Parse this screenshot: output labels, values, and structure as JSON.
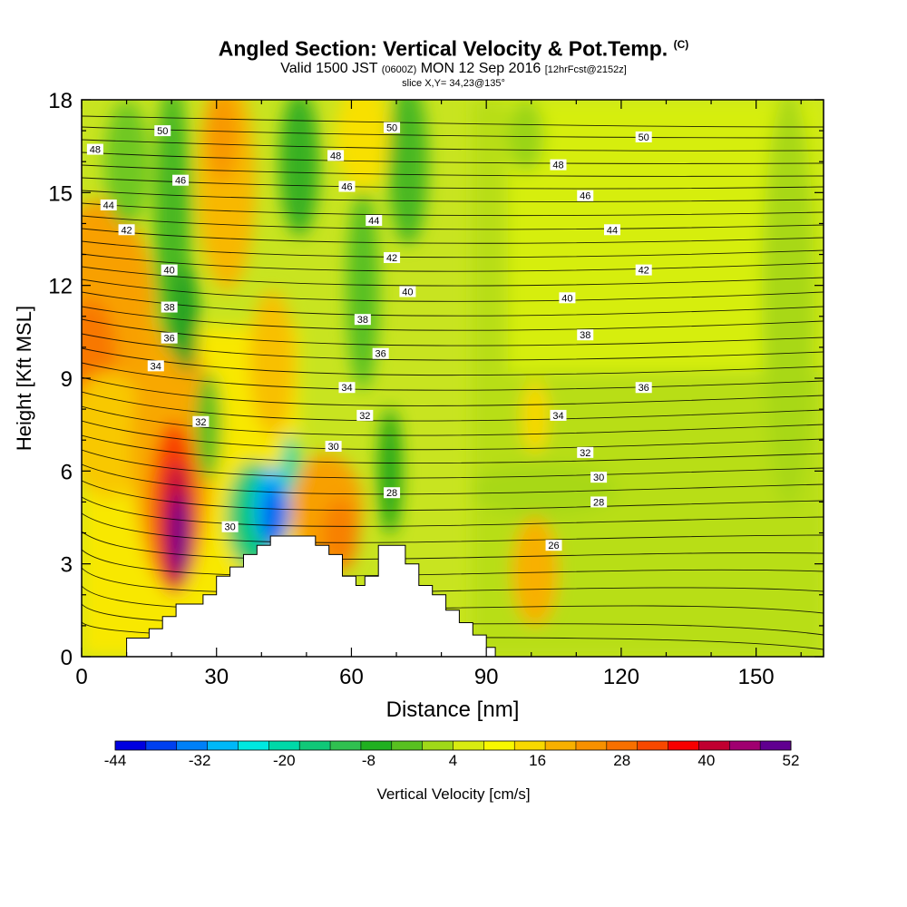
{
  "title": {
    "main": "Angled Section: Vertical Velocity & Pot.Temp.",
    "main_suffix": "(C)",
    "valid_prefix": "Valid 1500 JST",
    "valid_utc": "(0600Z)",
    "valid_date": "MON 12 Sep 2016",
    "forecast": "[12hrFcst@2152z]",
    "slice": "slice X,Y= 34,23@135°"
  },
  "chart_data": {
    "type": "heatmap",
    "xlabel": "Distance [nm]",
    "ylabel": "Height [Kft MSL]",
    "xlim": [
      0,
      165
    ],
    "ylim": [
      0,
      18
    ],
    "x_ticks": [
      0,
      30,
      60,
      90,
      120,
      150
    ],
    "y_ticks": [
      0,
      3,
      6,
      9,
      12,
      15,
      18
    ],
    "colorbar": {
      "label": "Vertical Velocity [cm/s]",
      "tick_labels": [
        "-44",
        "-32",
        "-20",
        "-8",
        "4",
        "16",
        "28",
        "40",
        "52"
      ],
      "colors": [
        "#0000e0",
        "#0040f0",
        "#0080f8",
        "#00b8f8",
        "#00e8e0",
        "#00d8a8",
        "#10c878",
        "#30c050",
        "#20b020",
        "#58c020",
        "#a0d818",
        "#d8ec10",
        "#f8f800",
        "#f8d800",
        "#f8b000",
        "#f89000",
        "#f87000",
        "#f84800",
        "#f80000",
        "#c00030",
        "#a00070",
        "#600090"
      ]
    },
    "terrain_profile_kft": [
      [
        0,
        0
      ],
      [
        10,
        0
      ],
      [
        10,
        0.6
      ],
      [
        15,
        0.6
      ],
      [
        15,
        0.9
      ],
      [
        18,
        0.9
      ],
      [
        18,
        1.3
      ],
      [
        21,
        1.3
      ],
      [
        21,
        1.7
      ],
      [
        27,
        1.7
      ],
      [
        27,
        2.0
      ],
      [
        30,
        2.0
      ],
      [
        30,
        2.6
      ],
      [
        33,
        2.6
      ],
      [
        33,
        2.9
      ],
      [
        36,
        2.9
      ],
      [
        36,
        3.3
      ],
      [
        39,
        3.3
      ],
      [
        39,
        3.6
      ],
      [
        42,
        3.6
      ],
      [
        42,
        3.9
      ],
      [
        52,
        3.9
      ],
      [
        52,
        3.6
      ],
      [
        55,
        3.6
      ],
      [
        55,
        3.3
      ],
      [
        58,
        3.3
      ],
      [
        58,
        2.6
      ],
      [
        61,
        2.6
      ],
      [
        61,
        2.3
      ],
      [
        63,
        2.3
      ],
      [
        63,
        2.6
      ],
      [
        66,
        2.6
      ],
      [
        66,
        3.6
      ],
      [
        72,
        3.6
      ],
      [
        72,
        3.0
      ],
      [
        75,
        3.0
      ],
      [
        75,
        2.3
      ],
      [
        78,
        2.3
      ],
      [
        78,
        2.0
      ],
      [
        81,
        2.0
      ],
      [
        81,
        1.5
      ],
      [
        84,
        1.5
      ],
      [
        84,
        1.1
      ],
      [
        87,
        1.1
      ],
      [
        87,
        0.7
      ],
      [
        90,
        0.7
      ],
      [
        90,
        0.3
      ],
      [
        92,
        0.3
      ],
      [
        92,
        0
      ],
      [
        165,
        0
      ]
    ],
    "contour_labels": [
      {
        "text": "50",
        "x": 18,
        "y": 17.0
      },
      {
        "text": "48",
        "x": 3,
        "y": 16.4
      },
      {
        "text": "46",
        "x": 22,
        "y": 15.4
      },
      {
        "text": "44",
        "x": 6,
        "y": 14.6
      },
      {
        "text": "42",
        "x": 10,
        "y": 13.8
      },
      {
        "text": "40",
        "x": 19.5,
        "y": 12.5
      },
      {
        "text": "38",
        "x": 19.5,
        "y": 11.3
      },
      {
        "text": "36",
        "x": 19.5,
        "y": 10.3
      },
      {
        "text": "34",
        "x": 16.5,
        "y": 9.4
      },
      {
        "text": "32",
        "x": 26.5,
        "y": 7.6
      },
      {
        "text": "30",
        "x": 33,
        "y": 4.2
      },
      {
        "text": "50",
        "x": 69,
        "y": 17.1
      },
      {
        "text": "48",
        "x": 56.5,
        "y": 16.2
      },
      {
        "text": "46",
        "x": 59,
        "y": 15.2
      },
      {
        "text": "44",
        "x": 65,
        "y": 14.1
      },
      {
        "text": "42",
        "x": 69,
        "y": 12.9
      },
      {
        "text": "40",
        "x": 72.5,
        "y": 11.8
      },
      {
        "text": "38",
        "x": 62.5,
        "y": 10.9
      },
      {
        "text": "36",
        "x": 66.5,
        "y": 9.8
      },
      {
        "text": "34",
        "x": 59,
        "y": 8.7
      },
      {
        "text": "32",
        "x": 63,
        "y": 7.8
      },
      {
        "text": "30",
        "x": 56,
        "y": 6.8
      },
      {
        "text": "28",
        "x": 69,
        "y": 5.3
      },
      {
        "text": "50",
        "x": 125,
        "y": 16.8
      },
      {
        "text": "48",
        "x": 106,
        "y": 15.9
      },
      {
        "text": "46",
        "x": 112,
        "y": 14.9
      },
      {
        "text": "44",
        "x": 118,
        "y": 13.8
      },
      {
        "text": "42",
        "x": 125,
        "y": 12.5
      },
      {
        "text": "40",
        "x": 108,
        "y": 11.6
      },
      {
        "text": "38",
        "x": 112,
        "y": 10.4
      },
      {
        "text": "36",
        "x": 125,
        "y": 8.7
      },
      {
        "text": "34",
        "x": 106,
        "y": 7.8
      },
      {
        "text": "32",
        "x": 112,
        "y": 6.6
      },
      {
        "text": "30",
        "x": 115,
        "y": 5.8
      },
      {
        "text": "28",
        "x": 115,
        "y": 5.0
      },
      {
        "text": "26",
        "x": 105,
        "y": 3.6
      }
    ]
  }
}
